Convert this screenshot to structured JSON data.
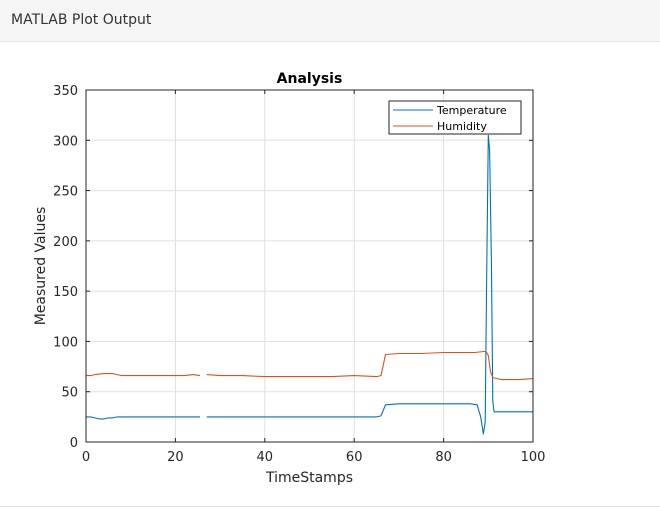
{
  "window": {
    "title": "MATLAB Plot Output"
  },
  "colors": {
    "temperature": "#0072BD",
    "humidity": "#D95319",
    "grid": "#dfdfdf",
    "axis": "#262626"
  },
  "chart_data": {
    "type": "line",
    "title": "Analysis",
    "xlabel": "TimeStamps",
    "ylabel": "Measured Values",
    "xlim": [
      0,
      100
    ],
    "ylim": [
      0,
      350
    ],
    "xticks": [
      0,
      20,
      40,
      60,
      80,
      100
    ],
    "yticks": [
      0,
      50,
      100,
      150,
      200,
      250,
      300,
      350
    ],
    "grid": true,
    "legend_position": "top-right",
    "series": [
      {
        "name": "Temperature",
        "color": "#0072BD",
        "segments": [
          [
            [
              0,
              25
            ],
            [
              1,
              25
            ],
            [
              2,
              24
            ],
            [
              3,
              23
            ],
            [
              4,
              23
            ],
            [
              5,
              24
            ],
            [
              6,
              24
            ],
            [
              7,
              25
            ],
            [
              10,
              25
            ],
            [
              15,
              25
            ],
            [
              20,
              25
            ],
            [
              24,
              25
            ],
            [
              25.5,
              25
            ]
          ],
          [
            [
              27,
              25
            ],
            [
              30,
              25
            ],
            [
              40,
              25
            ],
            [
              50,
              25
            ],
            [
              60,
              25
            ],
            [
              65,
              25
            ],
            [
              66,
              26
            ],
            [
              67,
              37
            ],
            [
              70,
              38
            ],
            [
              80,
              38
            ],
            [
              86,
              38
            ],
            [
              87.5,
              37
            ],
            [
              88.3,
              25
            ],
            [
              88.9,
              8
            ],
            [
              89.3,
              20
            ],
            [
              89.6,
              150
            ],
            [
              90,
              305
            ],
            [
              90.3,
              290
            ],
            [
              90.7,
              180
            ],
            [
              91,
              40
            ],
            [
              91.3,
              30
            ],
            [
              95,
              30
            ],
            [
              100,
              30
            ]
          ]
        ]
      },
      {
        "name": "Humidity",
        "color": "#D95319",
        "segments": [
          [
            [
              0,
              66
            ],
            [
              1,
              66
            ],
            [
              2,
              67
            ],
            [
              4,
              68
            ],
            [
              5,
              68
            ],
            [
              6,
              68
            ],
            [
              7,
              67
            ],
            [
              8,
              66
            ],
            [
              15,
              66
            ],
            [
              22,
              66
            ],
            [
              24,
              67
            ],
            [
              25.5,
              66
            ]
          ],
          [
            [
              27,
              67
            ],
            [
              30,
              66
            ],
            [
              35,
              66
            ],
            [
              40,
              65
            ],
            [
              50,
              65
            ],
            [
              55,
              65
            ],
            [
              60,
              66
            ],
            [
              65,
              65
            ],
            [
              66,
              66
            ],
            [
              67,
              87
            ],
            [
              70,
              88
            ],
            [
              75,
              88
            ],
            [
              80,
              89
            ],
            [
              87,
              89
            ],
            [
              89,
              90
            ],
            [
              89.5,
              90
            ],
            [
              90,
              86
            ],
            [
              90.5,
              70
            ],
            [
              91,
              64
            ],
            [
              93,
              62
            ],
            [
              97,
              62
            ],
            [
              100,
              63
            ]
          ]
        ]
      }
    ]
  }
}
